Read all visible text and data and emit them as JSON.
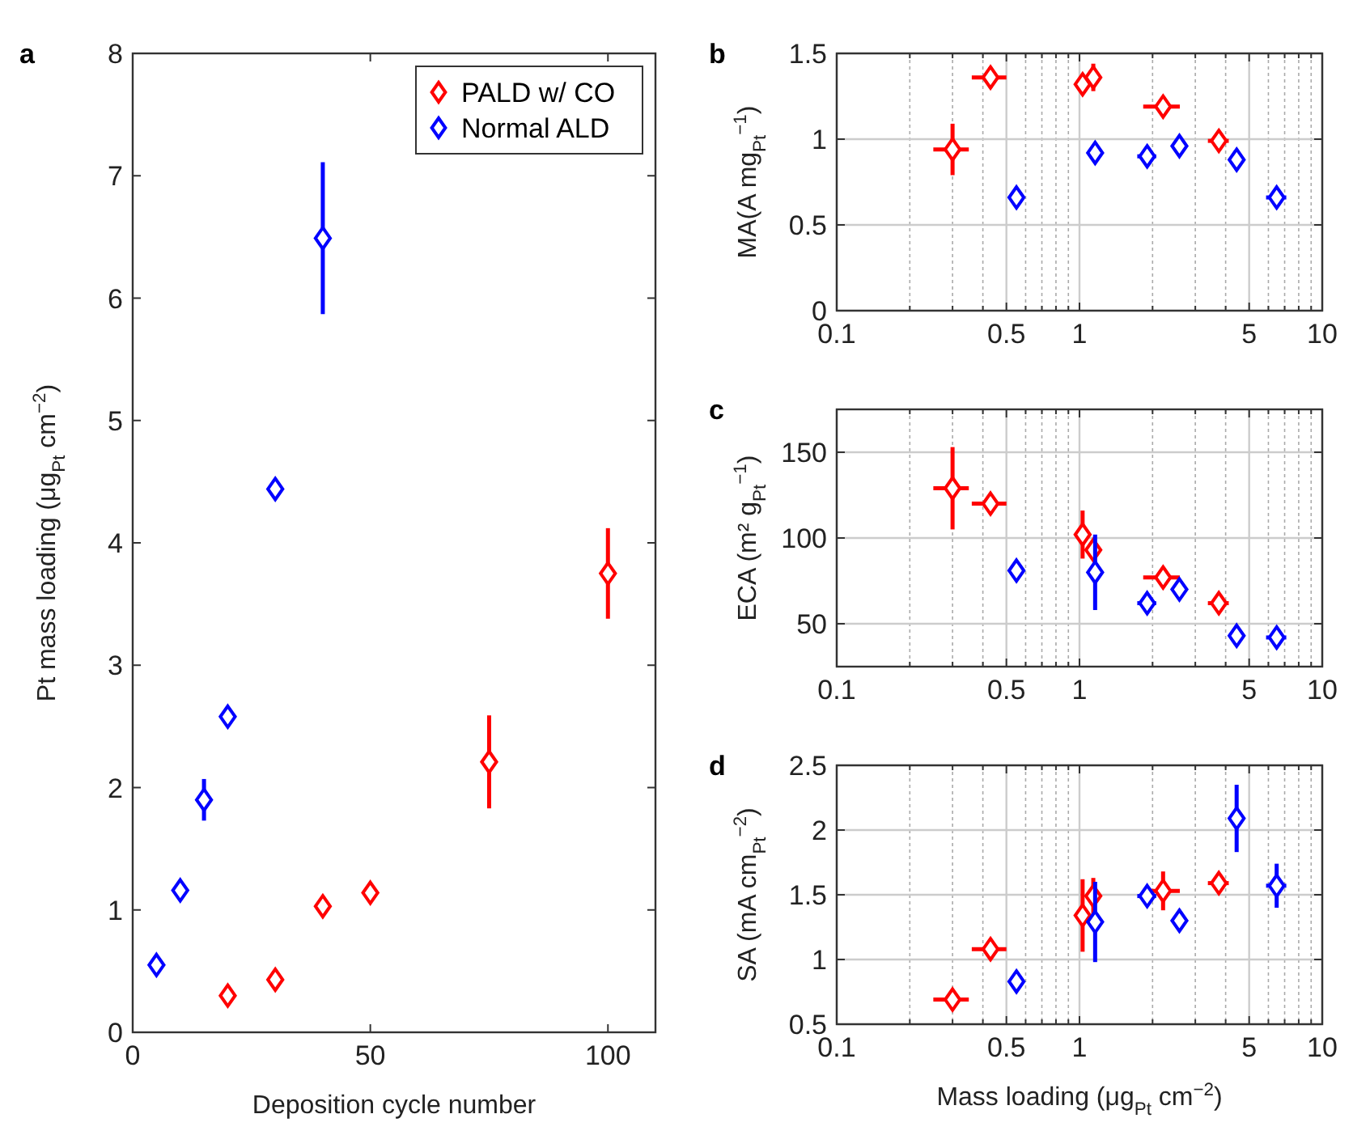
{
  "chart_data": [
    {
      "type": "scatter",
      "title": "a",
      "xlabel": "Deposition cycle number",
      "ylabel": "Pt mass loading (μg$_{Pt}$ cm$^{−2}$)",
      "xlim": [
        0,
        110
      ],
      "xticks": [
        0,
        50,
        100
      ],
      "ylim": [
        0,
        8
      ],
      "yticks": [
        0,
        1,
        2,
        3,
        4,
        5,
        6,
        7,
        8
      ],
      "grid": false,
      "legend": "top right",
      "marker": "diamond",
      "series": [
        {
          "name": "PALD w/ CO",
          "color": "#ff0000",
          "x": [
            20,
            30,
            40,
            50,
            75,
            100
          ],
          "values": [
            0.3,
            0.43,
            1.03,
            1.14,
            2.21,
            3.75
          ],
          "errors": [
            null,
            null,
            null,
            null,
            0.38,
            0.37
          ]
        },
        {
          "name": "Normal ALD",
          "color": "#0000ff",
          "x": [
            5,
            10,
            15,
            20,
            30,
            40
          ],
          "values": [
            0.55,
            1.16,
            1.9,
            2.58,
            4.44,
            6.49
          ],
          "errors": [
            null,
            null,
            0.17,
            null,
            null,
            0.62
          ]
        }
      ]
    },
    {
      "type": "scatter",
      "title": "b",
      "ylabel": "MA(A mg$_{Pt}$$^{−1}$)",
      "log": "x",
      "xlim": [
        0.1,
        10
      ],
      "xticks": [
        0.1,
        {
          "value": 0.2,
          "label": null
        },
        {
          "value": 0.3,
          "label": null
        },
        {
          "value": 0.4,
          "label": null
        },
        0.5,
        {
          "value": 0.6,
          "label": null
        },
        {
          "value": 0.7,
          "label": null
        },
        {
          "value": 0.8,
          "label": null
        },
        {
          "value": 0.9,
          "label": null
        },
        1,
        {
          "value": 2,
          "label": null
        },
        {
          "value": 3,
          "label": null
        },
        {
          "value": 4,
          "label": null
        },
        5,
        {
          "value": 6,
          "label": null
        },
        {
          "value": 7,
          "label": null
        },
        {
          "value": 8,
          "label": null
        },
        {
          "value": 9,
          "label": null
        },
        10
      ],
      "ylim": [
        0,
        1.5
      ],
      "yticks": [
        0,
        0.5,
        1,
        1.5
      ],
      "grid": true,
      "marker": "diamond",
      "series": [
        {
          "color": "#ff0000",
          "x": [
            0.3,
            0.43,
            1.03,
            1.14,
            2.21,
            3.75
          ],
          "values": [
            0.94,
            1.36,
            1.32,
            1.36,
            1.19,
            0.99
          ],
          "errors": [
            0.15,
            0.06,
            0.05,
            0.08,
            0.04,
            0.03
          ],
          "xerrors": [
            0.05,
            0.07,
            0.07,
            0.07,
            0.38,
            0.37
          ]
        },
        {
          "color": "#0000ff",
          "x": [
            0.55,
            1.16,
            1.9,
            2.58,
            4.44,
            6.49
          ],
          "values": [
            0.66,
            0.92,
            0.9,
            0.96,
            0.88,
            0.66
          ],
          "errors": [
            null,
            null,
            null,
            null,
            null,
            null
          ],
          "xerrors": [
            null,
            null,
            0.17,
            null,
            null,
            0.62
          ]
        }
      ]
    },
    {
      "type": "scatter",
      "title": "c",
      "ylabel": "ECA (m² g$_{Pt}$$^{−1}$)",
      "log": "x",
      "xlim": [
        0.1,
        10
      ],
      "xticks": [
        0.1,
        {
          "value": 0.2,
          "label": null
        },
        {
          "value": 0.3,
          "label": null
        },
        {
          "value": 0.4,
          "label": null
        },
        0.5,
        {
          "value": 0.6,
          "label": null
        },
        {
          "value": 0.7,
          "label": null
        },
        {
          "value": 0.8,
          "label": null
        },
        {
          "value": 0.9,
          "label": null
        },
        1,
        {
          "value": 2,
          "label": null
        },
        {
          "value": 3,
          "label": null
        },
        {
          "value": 4,
          "label": null
        },
        5,
        {
          "value": 6,
          "label": null
        },
        {
          "value": 7,
          "label": null
        },
        {
          "value": 8,
          "label": null
        },
        {
          "value": 9,
          "label": null
        },
        10
      ],
      "ylim": [
        25,
        175
      ],
      "yticks": [
        50,
        100,
        150
      ],
      "grid": true,
      "marker": "diamond",
      "series": [
        {
          "color": "#ff0000",
          "x": [
            0.3,
            0.43,
            1.03,
            1.14,
            2.21,
            3.75
          ],
          "values": [
            129,
            120,
            102,
            93,
            77,
            62
          ],
          "errors": [
            24,
            null,
            14,
            null,
            null,
            null
          ],
          "xerrors": [
            0.05,
            0.07,
            0.07,
            0.07,
            0.38,
            0.37
          ]
        },
        {
          "color": "#0000ff",
          "x": [
            0.55,
            1.16,
            1.9,
            2.58,
            4.44,
            6.49
          ],
          "values": [
            81,
            80,
            62,
            70,
            43,
            42
          ],
          "errors": [
            null,
            22,
            null,
            null,
            null,
            null
          ],
          "xerrors": [
            null,
            null,
            0.17,
            null,
            null,
            0.62
          ]
        }
      ]
    },
    {
      "type": "scatter",
      "title": "d",
      "xlabel": "Mass loading (μg$_{Pt}$ cm$^{−2}$)",
      "ylabel": "SA (mA cm$_{Pt}$$^{−2}$)",
      "log": "x",
      "xlim": [
        0.1,
        10
      ],
      "xticks": [
        0.1,
        {
          "value": 0.2,
          "label": null
        },
        {
          "value": 0.3,
          "label": null
        },
        {
          "value": 0.4,
          "label": null
        },
        0.5,
        {
          "value": 0.6,
          "label": null
        },
        {
          "value": 0.7,
          "label": null
        },
        {
          "value": 0.8,
          "label": null
        },
        {
          "value": 0.9,
          "label": null
        },
        1,
        {
          "value": 2,
          "label": null
        },
        {
          "value": 3,
          "label": null
        },
        {
          "value": 4,
          "label": null
        },
        5,
        {
          "value": 6,
          "label": null
        },
        {
          "value": 7,
          "label": null
        },
        {
          "value": 8,
          "label": null
        },
        {
          "value": 9,
          "label": null
        },
        10
      ],
      "ylim": [
        0.5,
        2.5
      ],
      "yticks": [
        0.5,
        1,
        1.5,
        2,
        2.5
      ],
      "grid": true,
      "marker": "diamond",
      "series": [
        {
          "color": "#ff0000",
          "x": [
            0.3,
            0.43,
            1.03,
            1.14,
            2.21,
            3.75
          ],
          "values": [
            0.69,
            1.08,
            1.34,
            1.49,
            1.53,
            1.59
          ],
          "errors": [
            null,
            null,
            0.28,
            0.14,
            0.15,
            null
          ],
          "xerrors": [
            0.05,
            0.07,
            0.07,
            0.07,
            0.38,
            0.37
          ]
        },
        {
          "color": "#0000ff",
          "x": [
            0.55,
            1.16,
            1.9,
            2.58,
            4.44,
            6.49
          ],
          "values": [
            0.83,
            1.29,
            1.49,
            1.3,
            2.09,
            1.57
          ],
          "errors": [
            null,
            0.31,
            null,
            null,
            0.26,
            0.17
          ],
          "xerrors": [
            null,
            null,
            0.17,
            null,
            null,
            0.62
          ]
        }
      ]
    }
  ]
}
